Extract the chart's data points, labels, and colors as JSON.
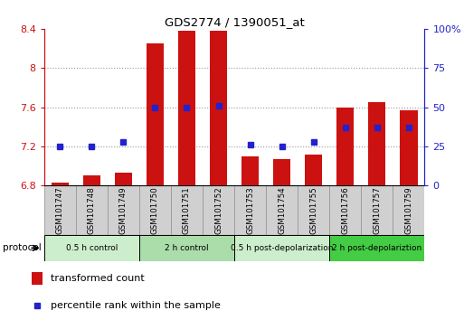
{
  "title": "GDS2774 / 1390051_at",
  "samples": [
    "GSM101747",
    "GSM101748",
    "GSM101749",
    "GSM101750",
    "GSM101751",
    "GSM101752",
    "GSM101753",
    "GSM101754",
    "GSM101755",
    "GSM101756",
    "GSM101757",
    "GSM101759"
  ],
  "red_values": [
    6.83,
    6.9,
    6.93,
    8.25,
    8.38,
    8.38,
    7.1,
    7.07,
    7.12,
    7.6,
    7.65,
    7.57
  ],
  "blue_pct": [
    25,
    25,
    28,
    50,
    50,
    51,
    26,
    25,
    28,
    37,
    37,
    37
  ],
  "ylim_left": [
    6.8,
    8.4
  ],
  "ylim_right": [
    0,
    100
  ],
  "yticks_left": [
    6.8,
    7.2,
    7.6,
    8.0,
    8.4
  ],
  "ytick_labels_left": [
    "6.8",
    "7.2",
    "7.6",
    "8",
    "8.4"
  ],
  "yticks_right": [
    0,
    25,
    50,
    75,
    100
  ],
  "ytick_labels_right": [
    "0",
    "25",
    "50",
    "75",
    "100%"
  ],
  "grid_lines": [
    7.2,
    7.6,
    8.0
  ],
  "groups": [
    {
      "label": "0.5 h control",
      "start": 0,
      "end": 3,
      "color": "#cceecc"
    },
    {
      "label": "2 h control",
      "start": 3,
      "end": 6,
      "color": "#aaddaa"
    },
    {
      "label": "0.5 h post-depolarization",
      "start": 6,
      "end": 9,
      "color": "#cceecc"
    },
    {
      "label": "2 h post-depolariztion",
      "start": 9,
      "end": 12,
      "color": "#44cc44"
    }
  ],
  "bar_width": 0.55,
  "red_color": "#cc1111",
  "blue_color": "#2222cc",
  "grid_color": "#999999",
  "sample_box_color": "#d0d0d0",
  "sample_box_edge": "#999999",
  "legend_red": "transformed count",
  "legend_blue": "percentile rank within the sample",
  "protocol_label": "protocol",
  "base_value": 6.8,
  "left_spine_color": "#cc1111",
  "right_spine_color": "#2222cc"
}
